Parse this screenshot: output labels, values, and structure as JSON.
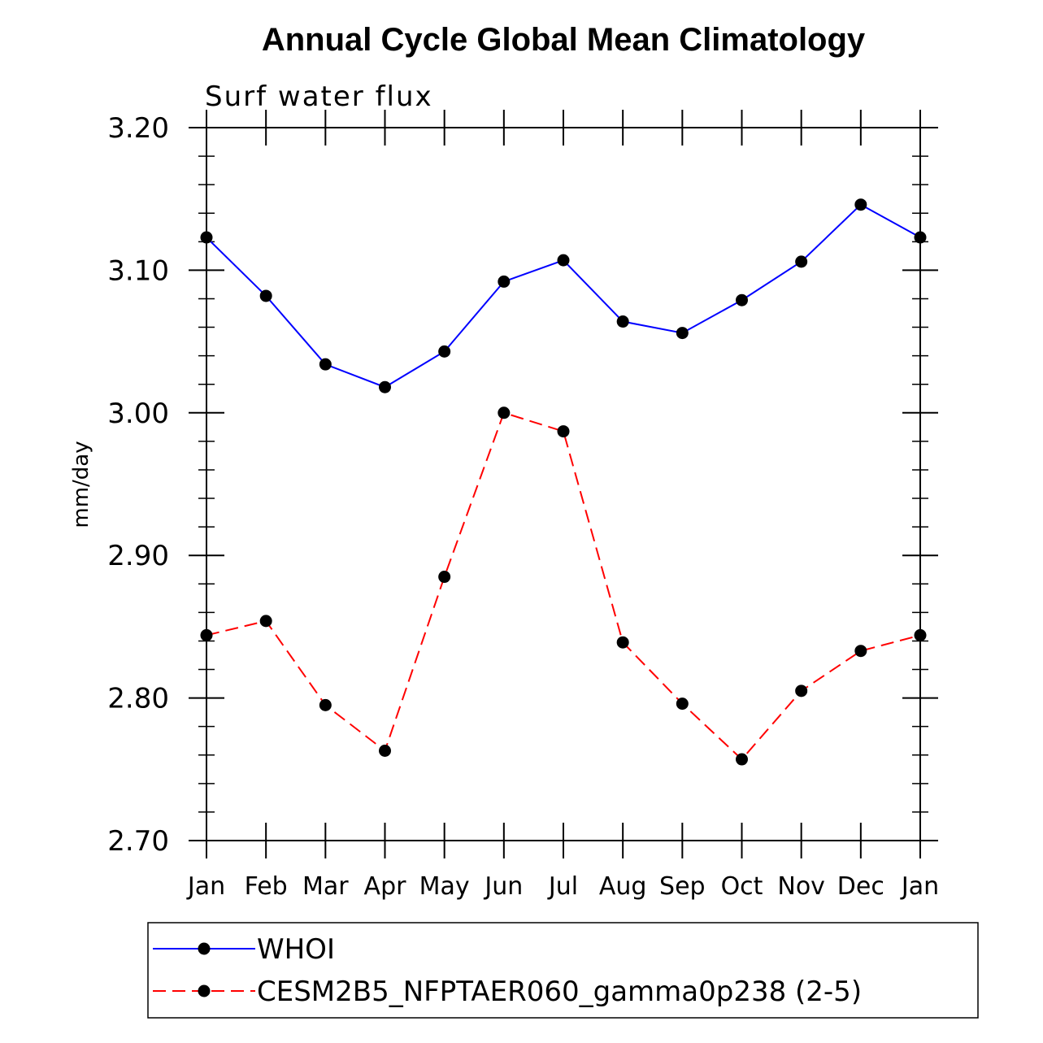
{
  "chart_data": {
    "type": "line",
    "title": "Annual Cycle Global Mean Climatology",
    "subtitle": "Surf water flux",
    "xlabel": "",
    "ylabel": "mm/day",
    "ylim": [
      2.7,
      3.2
    ],
    "yticks": [
      "2.70",
      "2.80",
      "2.90",
      "3.00",
      "3.10",
      "3.20"
    ],
    "ytick_values": [
      2.7,
      2.8,
      2.9,
      3.0,
      3.1,
      3.2
    ],
    "categories": [
      "Jan",
      "Feb",
      "Mar",
      "Apr",
      "May",
      "Jun",
      "Jul",
      "Aug",
      "Sep",
      "Oct",
      "Nov",
      "Dec",
      "Jan"
    ],
    "legend_position": "bottom",
    "series": [
      {
        "name": "WHOI",
        "color": "#0000ff",
        "dashed": false,
        "values": [
          3.123,
          3.082,
          3.034,
          3.018,
          3.043,
          3.092,
          3.107,
          3.064,
          3.056,
          3.079,
          3.106,
          3.146,
          3.123
        ]
      },
      {
        "name": "CESM2B5_NFPTAER060_gamma0p238 (2-5)",
        "color": "#ff0000",
        "dashed": true,
        "values": [
          2.844,
          2.854,
          2.795,
          2.763,
          2.885,
          3.0,
          2.987,
          2.839,
          2.796,
          2.757,
          2.805,
          2.833,
          2.844
        ]
      }
    ]
  }
}
